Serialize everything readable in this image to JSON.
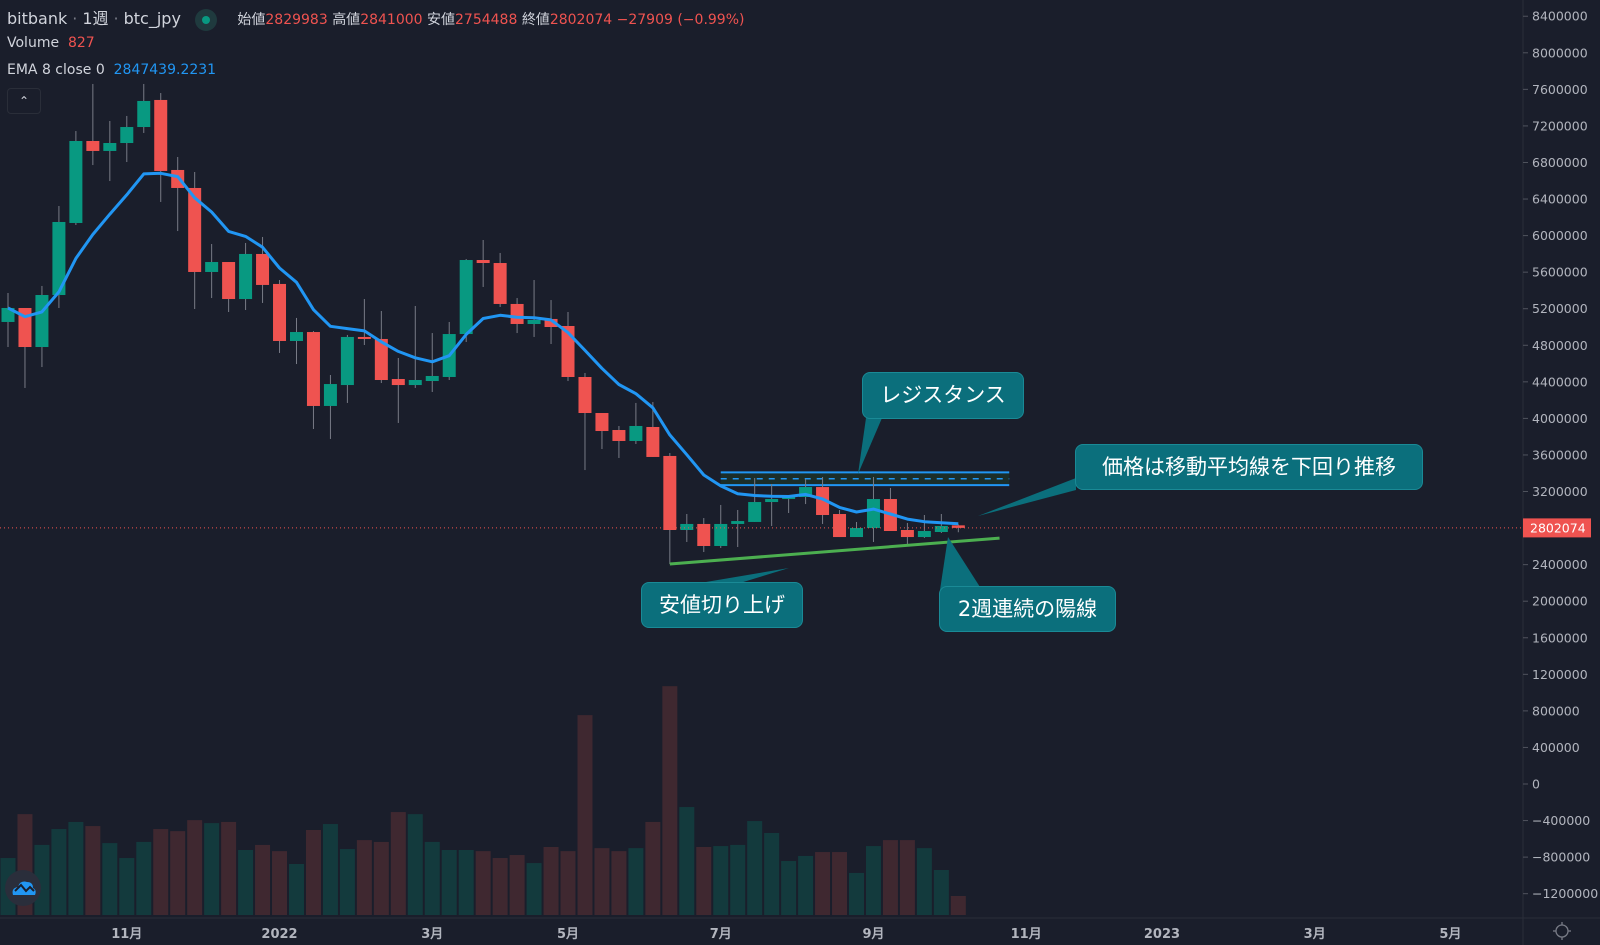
{
  "header": {
    "exchange": "bitbank",
    "interval": "1週",
    "symbol": "btc_jpy",
    "ohlc": {
      "open_label": "始値",
      "open": "2829983",
      "high_label": "高値",
      "high": "2841000",
      "low_label": "安値",
      "low": "2754488",
      "close_label": "終値",
      "close": "2802074",
      "change": "−27909 (−0.99%)"
    },
    "volume_label": "Volume",
    "volume_value": "827",
    "ema_label": "EMA 8 close 0",
    "ema_value": "2847439.2231",
    "collapse_icon": "chevron-up-icon"
  },
  "colors": {
    "background": "#1a1e2b",
    "up": "#089981",
    "down": "#ef5350",
    "volume_up": "#133a3d",
    "volume_down": "#3f2830",
    "ema": "#2196f3",
    "support_line": "#4caf50",
    "note_fill": "#0b6f7c"
  },
  "chart_data": {
    "type": "candlestick",
    "interval": "weekly",
    "yaxis": {
      "min": -1200000,
      "max": 8400000,
      "step": 400000,
      "ticks": [
        "8400000",
        "8000000",
        "7600000",
        "7200000",
        "6800000",
        "6400000",
        "6000000",
        "5600000",
        "5200000",
        "4800000",
        "4400000",
        "4000000",
        "3600000",
        "3200000",
        "2400000",
        "2000000",
        "1600000",
        "1200000",
        "800000",
        "400000",
        "0",
        "−400000",
        "−800000",
        "−1200000"
      ]
    },
    "last_price_label": "2802074",
    "last_price": 2802074,
    "xaxis_ticks": [
      {
        "date": "2021-11-01",
        "label": "11月"
      },
      {
        "date": "2022-01-03",
        "label": "2022"
      },
      {
        "date": "2022-03-07",
        "label": "3月"
      },
      {
        "date": "2022-05-02",
        "label": "5月"
      },
      {
        "date": "2022-07-04",
        "label": "7月"
      },
      {
        "date": "2022-09-05",
        "label": "9月"
      },
      {
        "date": "2022-11-07",
        "label": "11月"
      },
      {
        "date": "2023-01-02",
        "label": "2023"
      },
      {
        "date": "2023-03-06",
        "label": "3月"
      },
      {
        "date": "2023-05-01",
        "label": "5月"
      }
    ],
    "ema_period": 8,
    "columns": [
      "date",
      "open",
      "high",
      "low",
      "close",
      "volume"
    ],
    "candles": [
      [
        "2021-09-13",
        5055000,
        5372000,
        4781000,
        5208000,
        2480
      ],
      [
        "2021-09-20",
        5208000,
        5208000,
        4333000,
        4781000,
        4390
      ],
      [
        "2021-09-27",
        4781000,
        5449000,
        4562000,
        5350000,
        3050
      ],
      [
        "2021-10-04",
        5350000,
        6324000,
        5208000,
        6149000,
        3740
      ],
      [
        "2021-10-11",
        6138000,
        7144000,
        6116000,
        7035000,
        4050
      ],
      [
        "2021-10-18",
        7035000,
        7659000,
        6772000,
        6926000,
        3870
      ],
      [
        "2021-10-25",
        6926000,
        7254000,
        6597000,
        7013000,
        3130
      ],
      [
        "2021-11-01",
        7013000,
        7309000,
        6805000,
        7188000,
        2480
      ],
      [
        "2021-11-08",
        7188000,
        7659000,
        7123000,
        7473000,
        3180
      ],
      [
        "2021-11-15",
        7484000,
        7560000,
        6368000,
        6707000,
        3740
      ],
      [
        "2021-11-22",
        6718000,
        6860000,
        6050000,
        6521000,
        3650
      ],
      [
        "2021-11-29",
        6521000,
        6696000,
        5197000,
        5602000,
        4130
      ],
      [
        "2021-12-06",
        5602000,
        5908000,
        5317000,
        5711000,
        4000
      ],
      [
        "2021-12-13",
        5711000,
        5711000,
        5164000,
        5306000,
        4050
      ],
      [
        "2021-12-20",
        5306000,
        5919000,
        5186000,
        5799000,
        2830
      ],
      [
        "2021-12-27",
        5799000,
        5985000,
        5263000,
        5460000,
        3050
      ],
      [
        "2022-01-03",
        5471000,
        5514000,
        4716000,
        4847000,
        2780
      ],
      [
        "2022-01-10",
        4847000,
        5099000,
        4595000,
        4945000,
        2220
      ],
      [
        "2022-01-17",
        4945000,
        4956000,
        3884000,
        4136000,
        3700
      ],
      [
        "2022-01-24",
        4136000,
        4475000,
        3775000,
        4376000,
        3960
      ],
      [
        "2022-01-31",
        4365000,
        4913000,
        4169000,
        4891000,
        2870
      ],
      [
        "2022-02-07",
        4891000,
        5306000,
        4803000,
        4869000,
        3260
      ],
      [
        "2022-02-14",
        4869000,
        5175000,
        4387000,
        4420000,
        3180
      ],
      [
        "2022-02-21",
        4431000,
        4661000,
        3950000,
        4365000,
        4480
      ],
      [
        "2022-02-28",
        4365000,
        5230000,
        4333000,
        4420000,
        4390
      ],
      [
        "2022-03-07",
        4409000,
        4934000,
        4289000,
        4464000,
        3180
      ],
      [
        "2022-03-14",
        4453000,
        5055000,
        4420000,
        4923000,
        2830
      ],
      [
        "2022-03-21",
        4923000,
        5744000,
        4836000,
        5733000,
        2830
      ],
      [
        "2022-03-28",
        5733000,
        5952000,
        5438000,
        5700000,
        2780
      ],
      [
        "2022-04-04",
        5700000,
        5810000,
        5219000,
        5252000,
        2480
      ],
      [
        "2022-04-11",
        5252000,
        5317000,
        4934000,
        5033000,
        2610
      ],
      [
        "2022-04-18",
        5033000,
        5514000,
        4891000,
        5077000,
        2260
      ],
      [
        "2022-04-25",
        5088000,
        5295000,
        4814000,
        5000000,
        2960
      ],
      [
        "2022-05-02",
        5011000,
        5164000,
        4409000,
        4453000,
        2780
      ],
      [
        "2022-05-09",
        4453000,
        4497000,
        3435000,
        4059000,
        8700
      ],
      [
        "2022-05-16",
        4059000,
        4059000,
        3665000,
        3862000,
        2910
      ],
      [
        "2022-05-23",
        3873000,
        3917000,
        3567000,
        3753000,
        2780
      ],
      [
        "2022-05-30",
        3753000,
        4169000,
        3720000,
        3917000,
        2910
      ],
      [
        "2022-06-06",
        3906000,
        4179000,
        3578000,
        3578000,
        4050
      ],
      [
        "2022-06-13",
        3589000,
        3621000,
        2407000,
        2779000,
        9960
      ],
      [
        "2022-06-20",
        2779000,
        2954000,
        2648000,
        2845000,
        4700
      ],
      [
        "2022-06-27",
        2845000,
        2910000,
        2538000,
        2604000,
        2960
      ],
      [
        "2022-07-04",
        2604000,
        3053000,
        2582000,
        2845000,
        3000
      ],
      [
        "2022-07-11",
        2845000,
        2998000,
        2593000,
        2877000,
        3050
      ],
      [
        "2022-07-18",
        2867000,
        3348000,
        2867000,
        3085000,
        4090
      ],
      [
        "2022-07-25",
        3085000,
        3282000,
        2823000,
        3118000,
        3570
      ],
      [
        "2022-08-01",
        3118000,
        3162000,
        2965000,
        3140000,
        2350
      ],
      [
        "2022-08-08",
        3140000,
        3337000,
        3063000,
        3249000,
        2570
      ],
      [
        "2022-08-15",
        3249000,
        3359000,
        2845000,
        2943000,
        2740
      ],
      [
        "2022-08-22",
        2954000,
        2998000,
        2702000,
        2702000,
        2740
      ],
      [
        "2022-08-29",
        2702000,
        2867000,
        2702000,
        2801000,
        1830
      ],
      [
        "2022-09-05",
        2801000,
        3359000,
        2648000,
        3118000,
        3000
      ],
      [
        "2022-09-12",
        3118000,
        3239000,
        2768000,
        2768000,
        3260
      ],
      [
        "2022-09-19",
        2779000,
        2856000,
        2626000,
        2702000,
        3260
      ],
      [
        "2022-09-26",
        2702000,
        2943000,
        2692000,
        2768000,
        2910
      ],
      [
        "2022-10-03",
        2757000,
        2954000,
        2746000,
        2823000,
        1960
      ],
      [
        "2022-10-10",
        2829983,
        2841000,
        2754488,
        2802074,
        827
      ]
    ],
    "drawings": {
      "resistance_band": {
        "from_date": "2022-07-04",
        "to_date": "2022-10-31",
        "upper": 3410000,
        "lower": 3270000,
        "mid": 3340000
      },
      "support_line": {
        "from_date": "2022-06-13",
        "from_price": 2407000,
        "to_date": "2022-10-27",
        "to_price": 2690000
      }
    }
  },
  "annotations": {
    "resistance": "レジスタンス",
    "below_ma": "価格は移動平均線を下回り推移",
    "higher_lows": "安値切り上げ",
    "two_week_bull": "2週連続の陽線"
  },
  "widgets": {
    "logo_icon": "tradingview-cloud-logo-icon",
    "settings_icon": "gear-icon"
  }
}
